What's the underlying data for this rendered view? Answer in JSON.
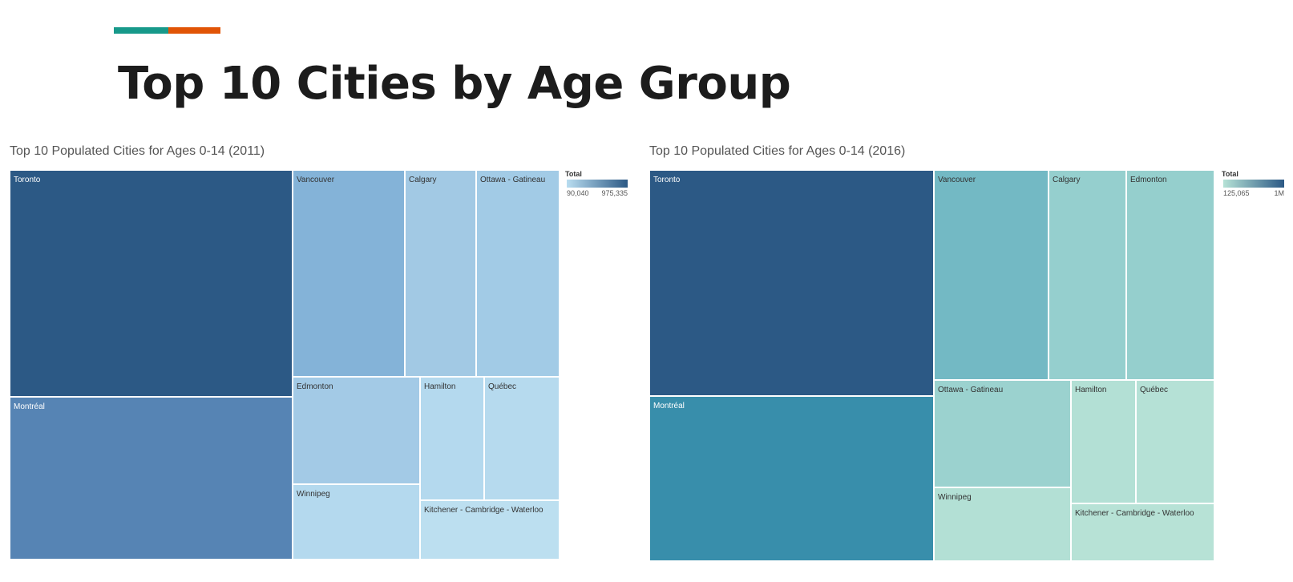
{
  "header": {
    "title": "Top 10 Cities by Age Group",
    "accent_colors": [
      "#17998a",
      "#e15406"
    ]
  },
  "chart_data": [
    {
      "type": "treemap",
      "title": "Top 10 Populated Cities for Ages 0-14 (2011)",
      "legend": {
        "title": "Total",
        "min_label": "90,040",
        "max_label": "975,335",
        "min": 90040,
        "max": 975335,
        "colors": [
          "#b9ddf0",
          "#2c5985"
        ],
        "placement": "top-right"
      },
      "items": [
        {
          "name": "Toronto",
          "value": 975335,
          "color": "#2c5985"
        },
        {
          "name": "Montréal",
          "value": 600000,
          "color": "#5684b4"
        },
        {
          "name": "Vancouver",
          "value": 310000,
          "color": "#84b3d8"
        },
        {
          "name": "Calgary",
          "value": 200000,
          "color": "#a2c9e4"
        },
        {
          "name": "Ottawa - Gatineau",
          "value": 190000,
          "color": "#a2cbe6"
        },
        {
          "name": "Edmonton",
          "value": 185000,
          "color": "#a3cae6"
        },
        {
          "name": "Winnipeg",
          "value": 118000,
          "color": "#b4d9ee"
        },
        {
          "name": "Hamilton",
          "value": 107000,
          "color": "#b4d9ee"
        },
        {
          "name": "Québec",
          "value": 100000,
          "color": "#b6daee"
        },
        {
          "name": "Kitchener - Cambridge - Waterloo",
          "value": 90040,
          "color": "#bcdff0"
        }
      ]
    },
    {
      "type": "treemap",
      "title": "Top 10 Populated Cities for Ages 0-14 (2016)",
      "legend": {
        "title": "Total",
        "min_label": "125,065",
        "max_label": "1M",
        "min": 125065,
        "max": 1000000,
        "colors": [
          "#b6e2d6",
          "#2c5985"
        ],
        "placement": "top-right"
      },
      "items": [
        {
          "name": "Toronto",
          "value": 1000000,
          "color": "#2c5985"
        },
        {
          "name": "Montréal",
          "value": 670000,
          "color": "#388eab"
        },
        {
          "name": "Vancouver",
          "value": 330000,
          "color": "#73b9c4"
        },
        {
          "name": "Calgary",
          "value": 245000,
          "color": "#95cfce"
        },
        {
          "name": "Edmonton",
          "value": 240000,
          "color": "#95cfcd"
        },
        {
          "name": "Ottawa - Gatineau",
          "value": 225000,
          "color": "#9bd2cf"
        },
        {
          "name": "Winnipeg",
          "value": 140000,
          "color": "#b3e0d5"
        },
        {
          "name": "Hamilton",
          "value": 130000,
          "color": "#b3e0d5"
        },
        {
          "name": "Québec",
          "value": 128000,
          "color": "#b5e1d6"
        },
        {
          "name": "Kitchener - Cambridge - Waterloo",
          "value": 125065,
          "color": "#b7e2d6"
        }
      ]
    }
  ]
}
